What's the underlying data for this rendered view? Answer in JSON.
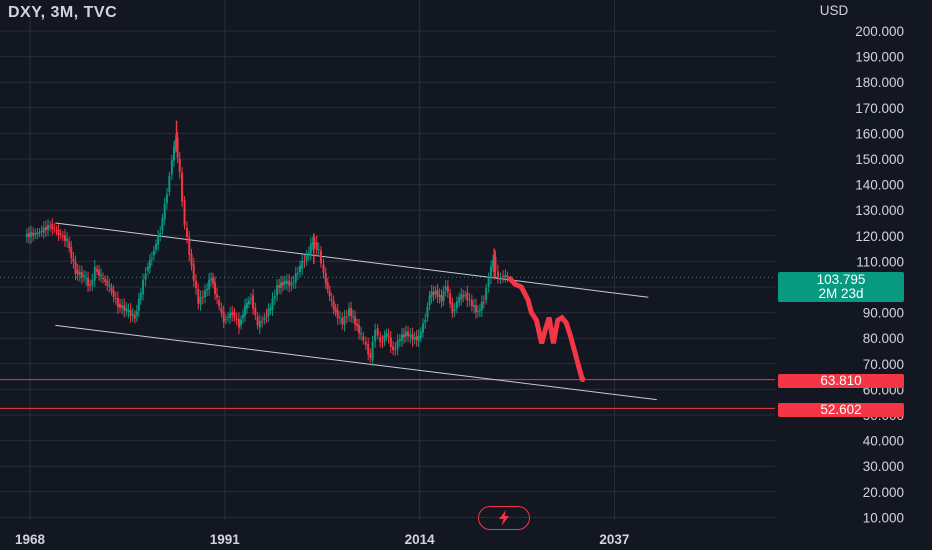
{
  "header": {
    "title": "DXY, 3M, TVC"
  },
  "axis": {
    "currency": "USD"
  },
  "chart_data": {
    "type": "candlestick",
    "title": "DXY, 3M, TVC",
    "y_axis_label": "USD",
    "ylim": [
      5,
      210
    ],
    "yticks": [
      "200.000",
      "190.000",
      "180.000",
      "170.000",
      "160.000",
      "150.000",
      "140.000",
      "130.000",
      "120.000",
      "110.000",
      "100.000",
      "90.000",
      "80.000",
      "70.000",
      "60.000",
      "50.000",
      "40.000",
      "30.000",
      "20.000",
      "10.000"
    ],
    "x_ticks": [
      "1968",
      "1991",
      "2014",
      "2037"
    ],
    "xlim": [
      1968,
      2055
    ],
    "last_price": {
      "value": "103.795",
      "countdown": "2M 23d"
    },
    "horizontal_lines": [
      {
        "value": 63.81,
        "label": "63.810"
      },
      {
        "value": 52.602,
        "label": "52.602"
      }
    ],
    "channel": {
      "upper": {
        "x1": 1971,
        "y1": 125,
        "x2": 2041,
        "y2": 96
      },
      "lower": {
        "x1": 1971,
        "y1": 85,
        "x2": 2042,
        "y2": 56
      }
    },
    "history_closes": [
      [
        1967.5,
        120
      ],
      [
        1969,
        121
      ],
      [
        1970.5,
        124
      ],
      [
        1971.5,
        121
      ],
      [
        1972.5,
        118
      ],
      [
        1973.5,
        106
      ],
      [
        1974.5,
        104
      ],
      [
        1975.2,
        100
      ],
      [
        1975.8,
        107
      ],
      [
        1976.5,
        104
      ],
      [
        1977.5,
        100
      ],
      [
        1978.5,
        93
      ],
      [
        1979.5,
        91
      ],
      [
        1980.5,
        88
      ],
      [
        1981.2,
        98
      ],
      [
        1981.8,
        106
      ],
      [
        1982.5,
        112
      ],
      [
        1983.5,
        122
      ],
      [
        1984.3,
        137
      ],
      [
        1984.9,
        150
      ],
      [
        1985.3,
        158
      ],
      [
        1985.8,
        144
      ],
      [
        1986.4,
        124
      ],
      [
        1987.2,
        108
      ],
      [
        1988,
        94
      ],
      [
        1988.8,
        98
      ],
      [
        1989.5,
        104
      ],
      [
        1990.2,
        95
      ],
      [
        1991,
        87
      ],
      [
        1992,
        90
      ],
      [
        1992.8,
        85
      ],
      [
        1993.5,
        92
      ],
      [
        1994.2,
        96
      ],
      [
        1995,
        85
      ],
      [
        1995.8,
        88
      ],
      [
        1996.5,
        92
      ],
      [
        1997.3,
        100
      ],
      [
        1998.2,
        102
      ],
      [
        1999,
        101
      ],
      [
        2000,
        108
      ],
      [
        2000.8,
        112
      ],
      [
        2001.5,
        118
      ],
      [
        2002.2,
        114
      ],
      [
        2002.8,
        105
      ],
      [
        2003.5,
        96
      ],
      [
        2004.2,
        90
      ],
      [
        2005,
        86
      ],
      [
        2005.8,
        91
      ],
      [
        2006.5,
        86
      ],
      [
        2007.2,
        81
      ],
      [
        2007.8,
        77
      ],
      [
        2008.3,
        72
      ],
      [
        2008.9,
        84
      ],
      [
        2009.5,
        78
      ],
      [
        2010.2,
        82
      ],
      [
        2011,
        75
      ],
      [
        2011.8,
        80
      ],
      [
        2012.5,
        82
      ],
      [
        2013.3,
        80
      ],
      [
        2014,
        80
      ],
      [
        2014.8,
        88
      ],
      [
        2015.3,
        97
      ],
      [
        2016,
        98
      ],
      [
        2016.7,
        95
      ],
      [
        2017.2,
        101
      ],
      [
        2018,
        90
      ],
      [
        2018.8,
        96
      ],
      [
        2019.5,
        97
      ],
      [
        2020.3,
        93
      ],
      [
        2021,
        90
      ],
      [
        2021.7,
        95
      ],
      [
        2022.3,
        104
      ],
      [
        2022.8,
        111
      ],
      [
        2023.4,
        103
      ],
      [
        2024,
        104.5
      ],
      [
        2024.5,
        103.8
      ]
    ],
    "projection": [
      [
        2024.5,
        103.8
      ],
      [
        2025.3,
        101
      ],
      [
        2026,
        100
      ],
      [
        2026.8,
        95
      ],
      [
        2027.2,
        90
      ],
      [
        2027.8,
        87
      ],
      [
        2028.4,
        78
      ],
      [
        2028.9,
        84
      ],
      [
        2029.3,
        88
      ],
      [
        2029.8,
        78
      ],
      [
        2030.3,
        87
      ],
      [
        2030.8,
        88
      ],
      [
        2031.3,
        86
      ],
      [
        2031.8,
        81
      ],
      [
        2032.3,
        75
      ],
      [
        2032.7,
        70
      ],
      [
        2033.2,
        64
      ],
      [
        2033.5,
        63.8
      ]
    ],
    "colors": {
      "up": "#089981",
      "down": "#f23645",
      "projection": "#f23645",
      "channel": "#c9ccd4",
      "grid": "#2a2e39",
      "background": "#131722"
    }
  }
}
